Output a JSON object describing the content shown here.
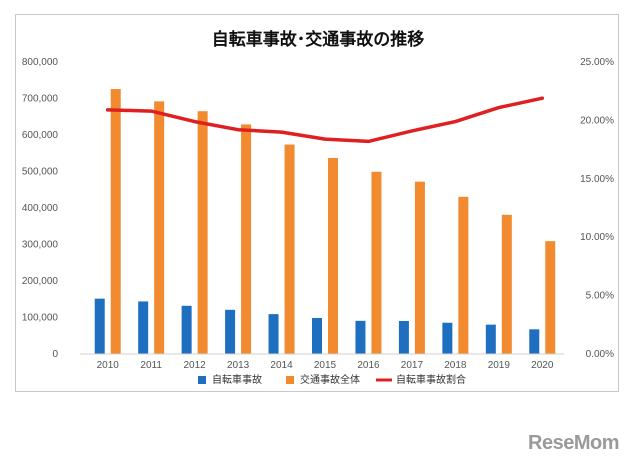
{
  "chart_data": {
    "type": "bar",
    "title": "自転車事故･交通事故の推移",
    "categories": [
      "2010",
      "2011",
      "2012",
      "2013",
      "2014",
      "2015",
      "2016",
      "2017",
      "2018",
      "2019",
      "2020"
    ],
    "series": [
      {
        "name": "自転車事故",
        "kind": "bar",
        "axis": "left",
        "color": "#1f6fc1",
        "values": [
          151626,
          144018,
          132048,
          121040,
          109269,
          98700,
          90836,
          90407,
          85641,
          80473,
          67673
        ]
      },
      {
        "name": "交通事故全体",
        "kind": "bar",
        "axis": "left",
        "color": "#f28a30",
        "values": [
          725924,
          692084,
          665157,
          629033,
          573842,
          536899,
          499201,
          472165,
          430601,
          381237,
          309178
        ]
      },
      {
        "name": "自転車事故割合",
        "kind": "line",
        "axis": "right",
        "color": "#e02020",
        "values": [
          20.9,
          20.8,
          19.9,
          19.2,
          19.0,
          18.4,
          18.2,
          19.1,
          19.9,
          21.1,
          21.9
        ]
      }
    ],
    "y_left": {
      "min": 0,
      "max": 800000,
      "ticks": [
        "0",
        "100,000",
        "200,000",
        "300,000",
        "400,000",
        "500,000",
        "600,000",
        "700,000",
        "800,000"
      ]
    },
    "y_right": {
      "min": 0,
      "max": 25,
      "ticks": [
        "0.00%",
        "5.00%",
        "10.00%",
        "15.00%",
        "20.00%",
        "25.00%"
      ]
    },
    "legend_position": "bottom",
    "grid": false
  },
  "watermark": "ReseMom"
}
